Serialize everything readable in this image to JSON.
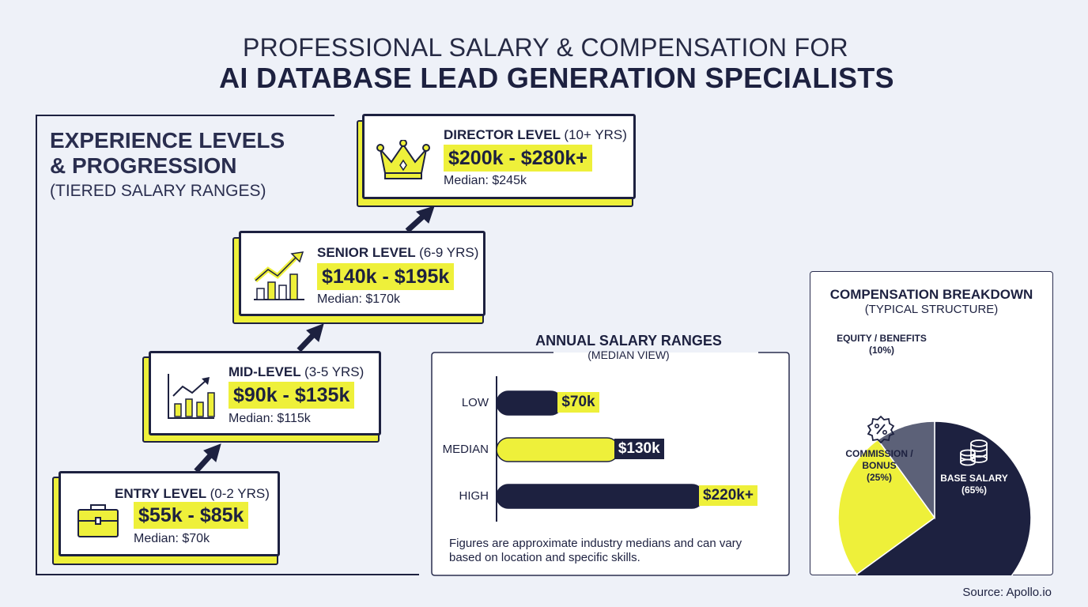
{
  "header": {
    "title_line1": "PROFESSIONAL SALARY & COMPENSATION FOR",
    "title_line2": "AI DATABASE LEAD GENERATION SPECIALISTS"
  },
  "experience": {
    "title_line1": "EXPERIENCE LEVELS",
    "title_line2": "& PROGRESSION",
    "subtitle": "(TIERED SALARY RANGES)",
    "tiers": [
      {
        "level": "ENTRY LEVEL",
        "years": "(0-2 YRS)",
        "range": "$55k - $85k",
        "median": "Median: $70k",
        "icon": "briefcase-icon"
      },
      {
        "level": "MID-LEVEL",
        "years": "(3-5 YRS)",
        "range": "$90k - $135k",
        "median": "Median: $115k",
        "icon": "growth-chart-icon"
      },
      {
        "level": "SENIOR LEVEL",
        "years": "(6-9 YRS)",
        "range": "$140k - $195k",
        "median": "Median: $170k",
        "icon": "trend-up-chart-icon"
      },
      {
        "level": "DIRECTOR LEVEL",
        "years": "(10+ YRS)",
        "range": "$200k - $280k+",
        "median": "Median: $245k",
        "icon": "crown-icon"
      }
    ]
  },
  "salary_ranges": {
    "title": "ANNUAL SALARY RANGES",
    "subtitle": "(MEDIAN VIEW)",
    "note_line1": "Figures are approximate industry medians and can vary",
    "note_line2": "based on location and specific skills.",
    "value_labels": [
      "$70k",
      "$130k",
      "$220k+"
    ]
  },
  "compensation": {
    "title": "COMPENSATION BREAKDOWN",
    "subtitle": "(TYPICAL STRUCTURE)",
    "labels": {
      "base": [
        "BASE SALARY",
        "(65%)"
      ],
      "commission": [
        "COMMISSION /",
        "BONUS",
        "(25%)"
      ],
      "equity": [
        "EQUITY / BENEFITS",
        "(10%)"
      ]
    }
  },
  "source": "Source: Apollo.io",
  "colors": {
    "navy": "#1d2140",
    "yellow": "#eef03a",
    "slate": "#5c6178",
    "background": "#eef1f8"
  },
  "chart_data": [
    {
      "type": "bar",
      "orientation": "horizontal",
      "title": "ANNUAL SALARY RANGES",
      "subtitle": "(MEDIAN VIEW)",
      "categories": [
        "LOW",
        "MEDIAN",
        "HIGH"
      ],
      "values": [
        70,
        130,
        220
      ],
      "value_labels": [
        "$70k",
        "$130k",
        "$220k+"
      ],
      "unit": "$k",
      "xlim": [
        0,
        220
      ],
      "bar_colors": [
        "#1d2140",
        "#eef03a",
        "#1d2140"
      ]
    },
    {
      "type": "pie",
      "title": "COMPENSATION BREAKDOWN",
      "subtitle": "(TYPICAL STRUCTURE)",
      "slices": [
        {
          "label": "BASE SALARY",
          "value": 65,
          "color": "#1d2140"
        },
        {
          "label": "COMMISSION / BONUS",
          "value": 25,
          "color": "#eef03a"
        },
        {
          "label": "EQUITY / BENEFITS",
          "value": 10,
          "color": "#5c6178"
        }
      ]
    }
  ]
}
